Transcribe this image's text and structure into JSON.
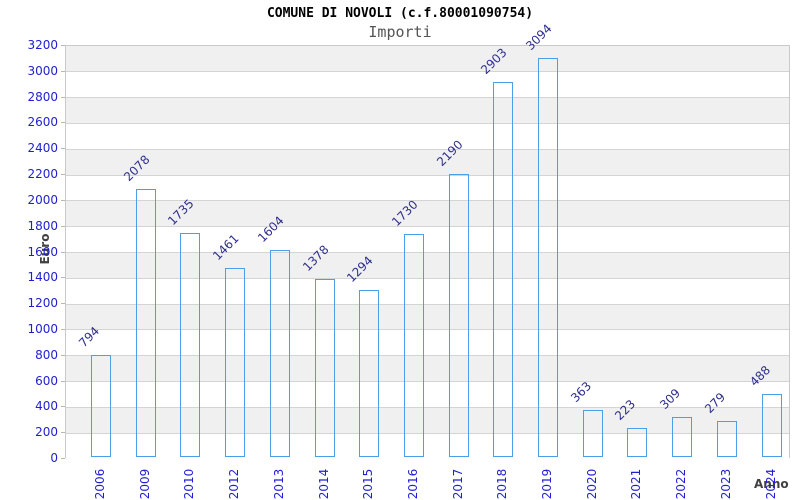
{
  "header": {
    "title": "COMUNE DI NOVOLI (c.f.80001090754)",
    "subtitle": "Importi"
  },
  "chart_data": {
    "type": "bar",
    "title": "COMUNE DI NOVOLI (c.f.80001090754)",
    "subtitle": "Importi",
    "xlabel": "Anno",
    "ylabel": "Euro",
    "categories": [
      "2006",
      "2009",
      "2010",
      "2012",
      "2013",
      "2014",
      "2015",
      "2016",
      "2017",
      "2018",
      "2019",
      "2020",
      "2021",
      "2022",
      "2023",
      "2024"
    ],
    "values": [
      794,
      2078,
      1735,
      1461,
      1604,
      1378,
      1294,
      1730,
      2190,
      2903,
      3094,
      363,
      223,
      309,
      279,
      488
    ],
    "ylim": [
      0,
      3200
    ],
    "ytick_step": 200,
    "grid": "horizontal",
    "legend": "none",
    "colors": {
      "bar_fill_dark": "#b51c1c",
      "bar_fill_mid": "#d62828",
      "bar_fill_light": "#f2９b9b",
      "bar_fill_highlight": "#f5adad",
      "bar_border": "#4aa0e8",
      "axis_tick_label": "#1f1fd1",
      "value_label": "#30308c",
      "band_gray": "#f0f0f0",
      "band_white": "#ffffff",
      "gridline": "#d4d4d4",
      "axis_title": "#404040",
      "title_color": "#000000",
      "subtitle_color": "#555555"
    }
  }
}
